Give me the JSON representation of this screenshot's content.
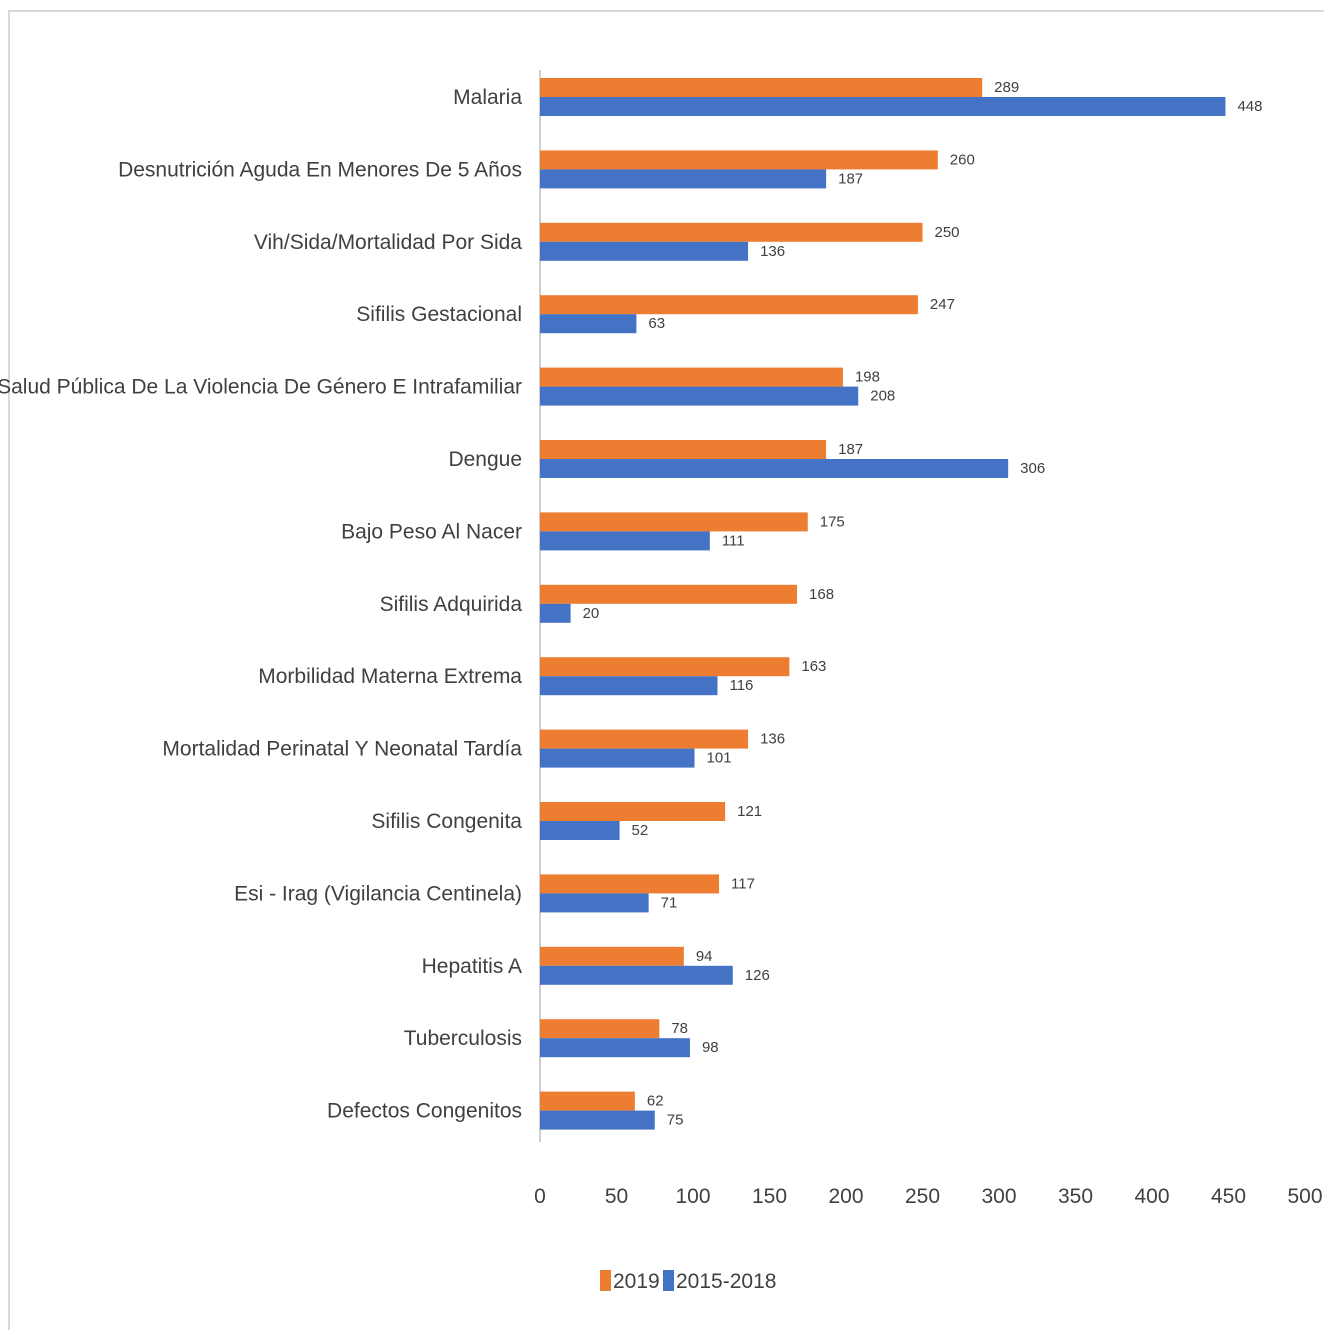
{
  "chart_data": {
    "type": "bar",
    "orientation": "horizontal",
    "categories": [
      "Malaria",
      "Desnutrición Aguda En Menores De 5 Años",
      "Vih/Sida/Mortalidad Por Sida",
      "Sifilis Gestacional",
      "Vigilancia En Salud Pública De La Violencia De Género E Intrafamiliar",
      "Dengue",
      "Bajo Peso Al Nacer",
      "Sifilis Adquirida",
      "Morbilidad Materna Extrema",
      "Mortalidad Perinatal Y Neonatal Tardía",
      "Sifilis Congenita",
      "Esi - Irag (Vigilancia Centinela)",
      "Hepatitis A",
      "Tuberculosis",
      "Defectos Congenitos"
    ],
    "series": [
      {
        "name": "2019",
        "color": "#ED7D31",
        "values": [
          289,
          260,
          250,
          247,
          198,
          187,
          175,
          168,
          163,
          136,
          121,
          117,
          94,
          78,
          62
        ]
      },
      {
        "name": "2015-2018",
        "color": "#4472C4",
        "values": [
          448,
          187,
          136,
          63,
          208,
          306,
          111,
          20,
          116,
          101,
          52,
          71,
          126,
          98,
          75
        ]
      }
    ],
    "xlim": [
      0,
      500
    ],
    "xticks": [
      "0",
      "50",
      "100",
      "150",
      "200",
      "250",
      "300",
      "350",
      "400",
      "450",
      "500"
    ],
    "grid": false,
    "legend_position": "bottom",
    "data_labels": true
  }
}
